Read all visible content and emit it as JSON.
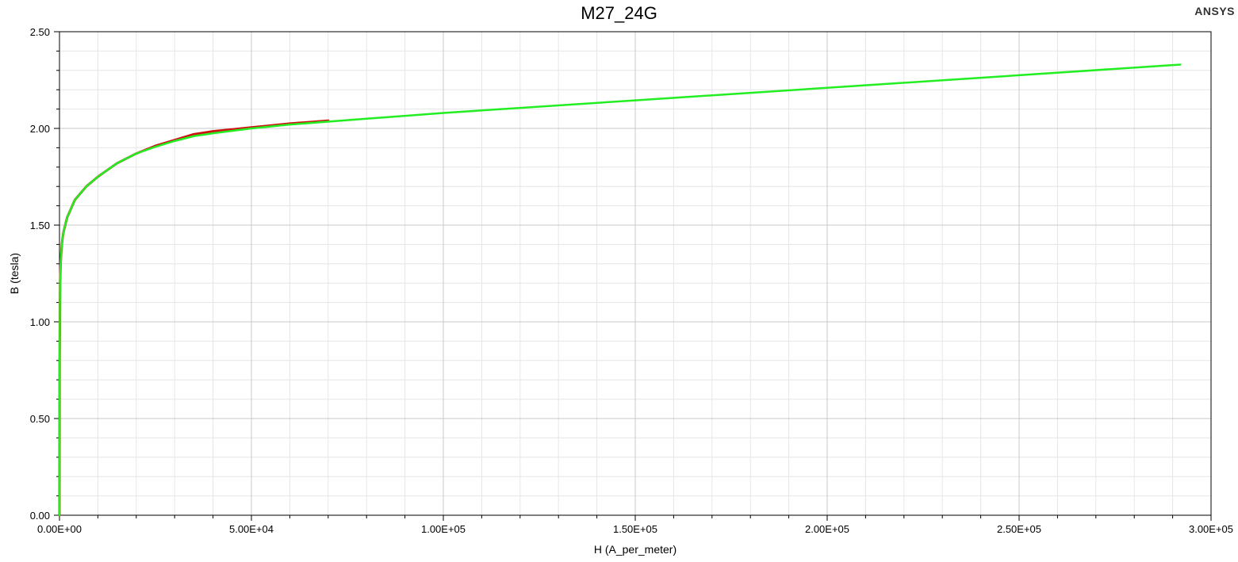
{
  "brand": "ANSYS",
  "colors": {
    "measured": "#d01010",
    "fitted": "#22ee22",
    "grid_major": "#c8c8c8",
    "grid_minor": "#e6e6e6"
  },
  "chart_data": {
    "type": "line",
    "title": "M27_24G",
    "xlabel": "H (A_per_meter)",
    "ylabel": "B (tesla)",
    "xlim": [
      0,
      300000
    ],
    "ylim": [
      0,
      2.5
    ],
    "xticks": [
      0,
      50000,
      100000,
      150000,
      200000,
      250000,
      300000
    ],
    "xtick_labels": [
      "0.00E+00",
      "5.00E+04",
      "1.00E+05",
      "1.50E+05",
      "2.00E+05",
      "2.50E+05",
      "3.00E+05"
    ],
    "yticks": [
      0,
      0.5,
      1.0,
      1.5,
      2.0,
      2.5
    ],
    "ytick_labels": [
      "0.00",
      "0.50",
      "1.00",
      "1.50",
      "2.00",
      "2.50"
    ],
    "grid": true,
    "legend": "none",
    "series": [
      {
        "color": "#d01010",
        "x": [
          0,
          50,
          150,
          300,
          600,
          1000,
          2000,
          4000,
          7000,
          10000,
          15000,
          20000,
          25000,
          30000,
          35000,
          40000,
          45000,
          50000,
          55000,
          60000,
          70000
        ],
        "y": [
          0,
          0.8,
          1.2,
          1.3,
          1.4,
          1.46,
          1.54,
          1.63,
          1.7,
          1.75,
          1.82,
          1.87,
          1.91,
          1.94,
          1.97,
          1.985,
          1.995,
          2.005,
          2.015,
          2.025,
          2.04
        ]
      },
      {
        "color": "#22ee22",
        "x": [
          0,
          50,
          150,
          300,
          600,
          1000,
          2000,
          4000,
          7000,
          10000,
          15000,
          20000,
          25000,
          30000,
          35000,
          40000,
          50000,
          60000,
          80000,
          100000,
          150000,
          200000,
          250000,
          292000
        ],
        "y": [
          0,
          0.8,
          1.2,
          1.3,
          1.4,
          1.46,
          1.54,
          1.63,
          1.7,
          1.75,
          1.82,
          1.87,
          1.905,
          1.935,
          1.96,
          1.975,
          2.0,
          2.02,
          2.05,
          2.08,
          2.145,
          2.21,
          2.275,
          2.33
        ]
      }
    ]
  }
}
